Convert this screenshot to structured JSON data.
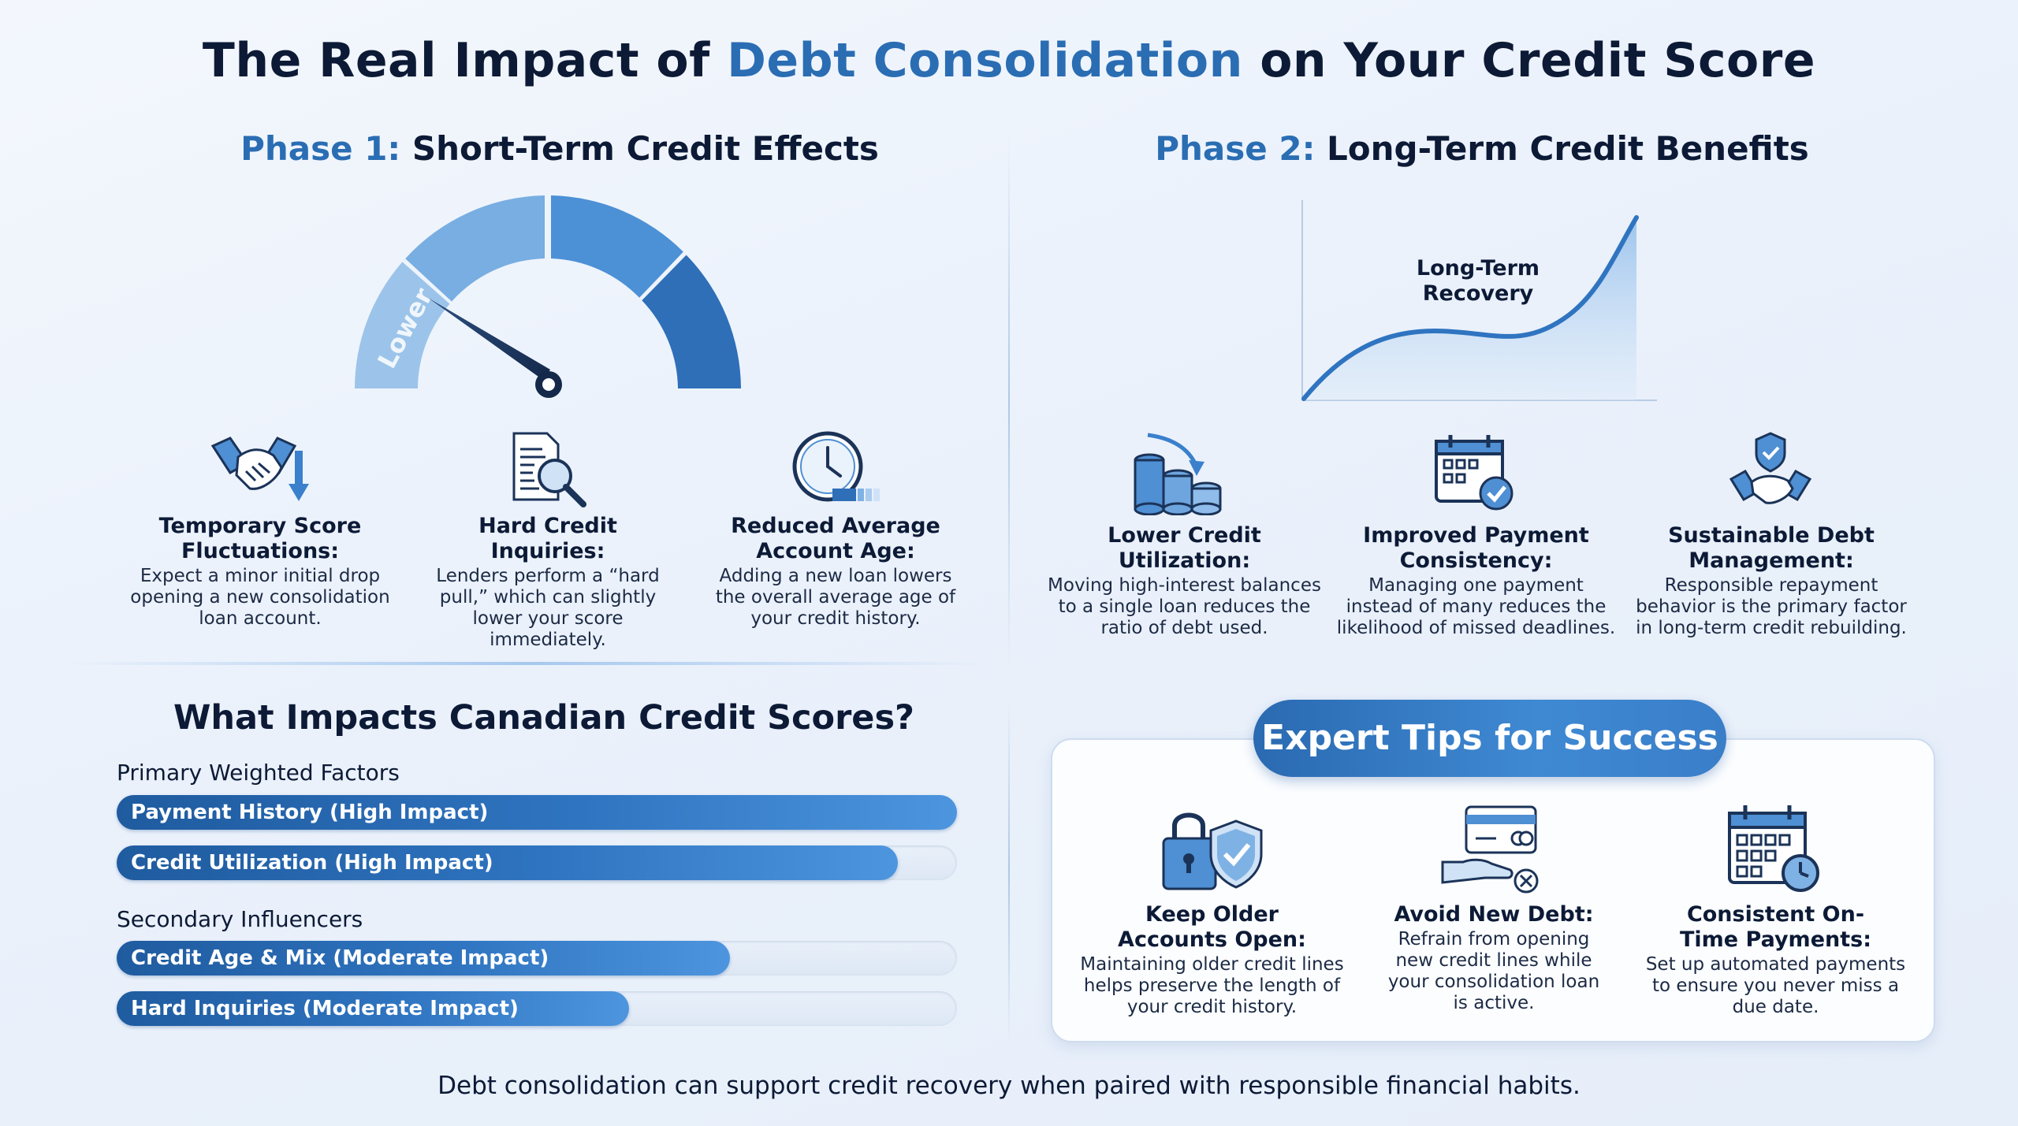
{
  "title": {
    "part1": "The Real Impact of ",
    "accent": "Debt Consolidation",
    "part2": " on Your Credit Score"
  },
  "phase1": {
    "label": "Phase 1:",
    "title": "Short-Term Credit Effects",
    "gauge_label": "Lower",
    "items": [
      {
        "icon": "handshake-down-arrow-icon",
        "title": "Temporary Score Fluctuations:",
        "desc": "Expect a minor initial drop opening a new consolidation loan account."
      },
      {
        "icon": "document-magnifier-icon",
        "title": "Hard Credit Inquiries:",
        "desc": "Lenders perform a “hard pull,” which can slightly lower your score immediately."
      },
      {
        "icon": "clock-icon",
        "title": "Reduced Average Account Age:",
        "desc": "Adding a new loan lowers the overall average age of your credit history."
      }
    ]
  },
  "phase2": {
    "label": "Phase 2:",
    "title": "Long-Term Credit Benefits",
    "chart_label": "Long-Term Recovery",
    "items": [
      {
        "icon": "coin-stacks-icon",
        "title": "Lower Credit Utilization:",
        "desc": "Moving high-interest balances to a single loan reduces the ratio of debt used."
      },
      {
        "icon": "calendar-check-icon",
        "title": "Improved Payment Consistency:",
        "desc": "Managing one payment instead of many reduces the likelihood of missed deadlines."
      },
      {
        "icon": "shield-handshake-icon",
        "title": "Sustainable Debt Management:",
        "desc": "Responsible repayment behavior is the primary factor in long-term credit rebuilding."
      }
    ]
  },
  "factors": {
    "title": "What Impacts Canadian Credit Scores?",
    "primary_label": "Primary Weighted Factors",
    "secondary_label": "Secondary Influencers",
    "bars": [
      {
        "label": "Payment History (High Impact)",
        "level": 1.0
      },
      {
        "label": "Credit Utilization (High Impact)",
        "level": 0.93
      },
      {
        "label": "Credit Age & Mix (Moderate Impact)",
        "level": 0.73
      },
      {
        "label": "Hard Inquiries (Moderate Impact)",
        "level": 0.61
      }
    ]
  },
  "tips": {
    "title": "Expert Tips for Success",
    "items": [
      {
        "icon": "lock-shield-icon",
        "title": "Keep Older Accounts Open:",
        "desc": "Maintaining older credit lines helps preserve the length of your credit history."
      },
      {
        "icon": "card-hand-no-icon",
        "title": "Avoid New Debt:",
        "desc": "Refrain from opening new credit lines while your consolidation loan is active."
      },
      {
        "icon": "calendar-clock-icon",
        "title": "Consistent On-Time Payments:",
        "desc": "Set up automated payments to ensure you never miss a due date."
      }
    ]
  },
  "footer": "Debt consolidation can support credit recovery when paired with responsible financial habits.",
  "colors": {
    "accent": "#2a6db3",
    "dark": "#0c1a36",
    "bar": "#2f74c0"
  }
}
